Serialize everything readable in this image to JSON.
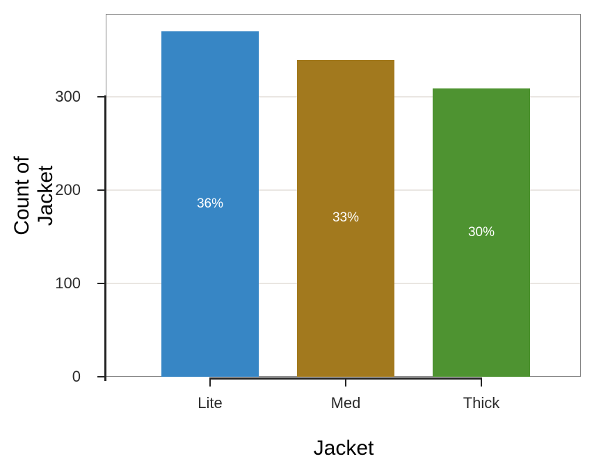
{
  "chart_data": {
    "type": "bar",
    "title": "",
    "categories": [
      "Lite",
      "Med",
      "Thick"
    ],
    "values": [
      370,
      340,
      309
    ],
    "bar_labels": [
      "36%",
      "33%",
      "30%"
    ],
    "bar_colors": [
      "#3786c5",
      "#a2791e",
      "#4e9331"
    ],
    "xlabel": "Jacket",
    "ylabel": "Count of Jacket",
    "yticks": [
      0,
      100,
      200,
      300
    ],
    "ylim": [
      0,
      389
    ],
    "grid": "horizontal-only",
    "legend": "none"
  },
  "colors": {
    "grid": "#eae6e2",
    "axis": "#242424",
    "panel_border": "#848484",
    "tick_text": "#2b2b2b",
    "bar_label_text": "#ffffff"
  }
}
